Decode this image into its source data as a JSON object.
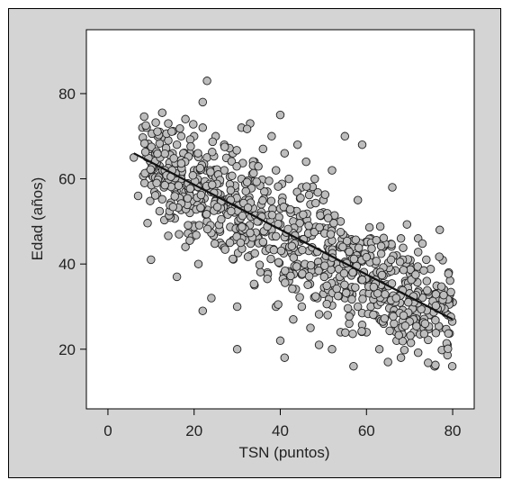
{
  "chart_data": {
    "type": "scatter",
    "title": "",
    "xlabel": "TSN (puntos)",
    "ylabel": "Edad (años)",
    "xlim": [
      -5,
      85
    ],
    "ylim": [
      6,
      95
    ],
    "xticks": [
      0,
      20,
      40,
      60,
      80
    ],
    "yticks": [
      20,
      40,
      60,
      80
    ],
    "grid": false,
    "colors": {
      "frame_background": "#d4d4d4",
      "plot_background": "#ffffff",
      "point_fill": "#bdbdbd",
      "point_stroke": "#222222",
      "line": "#111111"
    },
    "trend_line": {
      "x": [
        6,
        80
      ],
      "y": [
        66,
        27
      ]
    },
    "point_cloud_summary": {
      "approx_count": 900,
      "note_x_range": [
        6,
        81
      ],
      "note_y_range": [
        16,
        83
      ]
    },
    "points": [
      [
        6,
        65
      ],
      [
        7,
        56
      ],
      [
        8,
        72
      ],
      [
        9,
        72
      ],
      [
        10,
        67
      ],
      [
        10,
        41
      ],
      [
        11,
        66
      ],
      [
        12,
        71
      ],
      [
        12,
        63
      ],
      [
        13,
        62
      ],
      [
        13,
        58
      ],
      [
        14,
        69
      ],
      [
        14,
        73
      ],
      [
        15,
        66
      ],
      [
        15,
        51
      ],
      [
        16,
        68
      ],
      [
        16,
        64
      ],
      [
        16,
        37
      ],
      [
        17,
        70
      ],
      [
        17,
        61
      ],
      [
        18,
        74
      ],
      [
        18,
        57
      ],
      [
        18,
        44
      ],
      [
        19,
        66
      ],
      [
        19,
        52
      ],
      [
        20,
        70
      ],
      [
        20,
        62
      ],
      [
        20,
        47
      ],
      [
        21,
        58
      ],
      [
        21,
        40
      ],
      [
        22,
        72
      ],
      [
        22,
        78
      ],
      [
        22,
        29
      ],
      [
        23,
        83
      ],
      [
        23,
        65
      ],
      [
        23,
        50
      ],
      [
        24,
        61
      ],
      [
        24,
        32
      ],
      [
        25,
        70
      ],
      [
        25,
        55
      ],
      [
        26,
        45
      ],
      [
        27,
        62
      ],
      [
        27,
        68
      ],
      [
        28,
        52
      ],
      [
        29,
        66
      ],
      [
        29,
        58
      ],
      [
        30,
        20
      ],
      [
        30,
        30
      ],
      [
        30,
        48
      ],
      [
        31,
        72
      ],
      [
        31,
        60
      ],
      [
        32,
        55
      ],
      [
        33,
        42
      ],
      [
        33,
        73
      ],
      [
        34,
        35
      ],
      [
        34,
        64
      ],
      [
        35,
        50
      ],
      [
        36,
        67
      ],
      [
        36,
        45
      ],
      [
        37,
        38
      ],
      [
        37,
        57
      ],
      [
        38,
        70
      ],
      [
        38,
        48
      ],
      [
        39,
        30
      ],
      [
        39,
        62
      ],
      [
        40,
        22
      ],
      [
        40,
        75
      ],
      [
        40,
        53
      ],
      [
        41,
        18
      ],
      [
        41,
        66
      ],
      [
        41,
        44
      ],
      [
        42,
        60
      ],
      [
        42,
        36
      ],
      [
        43,
        27
      ],
      [
        43,
        50
      ],
      [
        44,
        68
      ],
      [
        44,
        40
      ],
      [
        45,
        58
      ],
      [
        45,
        30
      ],
      [
        46,
        46
      ],
      [
        46,
        64
      ],
      [
        47,
        25
      ],
      [
        47,
        54
      ],
      [
        48,
        38
      ],
      [
        48,
        60
      ],
      [
        49,
        21
      ],
      [
        49,
        48
      ],
      [
        50,
        33
      ],
      [
        50,
        55
      ],
      [
        51,
        44
      ],
      [
        51,
        28
      ],
      [
        52,
        20
      ],
      [
        52,
        62
      ],
      [
        53,
        40
      ],
      [
        53,
        36
      ],
      [
        54,
        24
      ],
      [
        54,
        50
      ],
      [
        55,
        70
      ],
      [
        55,
        32
      ],
      [
        56,
        44
      ],
      [
        56,
        26
      ],
      [
        57,
        16
      ],
      [
        57,
        38
      ],
      [
        58,
        55
      ],
      [
        58,
        30
      ],
      [
        59,
        68
      ],
      [
        59,
        42
      ],
      [
        60,
        24
      ],
      [
        60,
        36
      ],
      [
        61,
        46
      ],
      [
        61,
        30
      ],
      [
        62,
        28
      ],
      [
        62,
        40
      ],
      [
        63,
        20
      ],
      [
        63,
        34
      ],
      [
        64,
        44
      ],
      [
        64,
        26
      ],
      [
        65,
        17
      ],
      [
        65,
        38
      ],
      [
        66,
        58
      ],
      [
        66,
        30
      ],
      [
        67,
        22
      ],
      [
        67,
        42
      ],
      [
        68,
        18
      ],
      [
        68,
        46
      ],
      [
        69,
        28
      ],
      [
        69,
        36
      ],
      [
        70,
        32
      ],
      [
        70,
        40
      ],
      [
        71,
        24
      ],
      [
        72,
        46
      ],
      [
        72,
        30
      ],
      [
        73,
        26
      ],
      [
        74,
        36
      ],
      [
        75,
        28
      ],
      [
        76,
        33
      ],
      [
        77,
        48
      ],
      [
        77,
        25
      ],
      [
        78,
        34
      ],
      [
        80,
        31
      ]
    ]
  }
}
